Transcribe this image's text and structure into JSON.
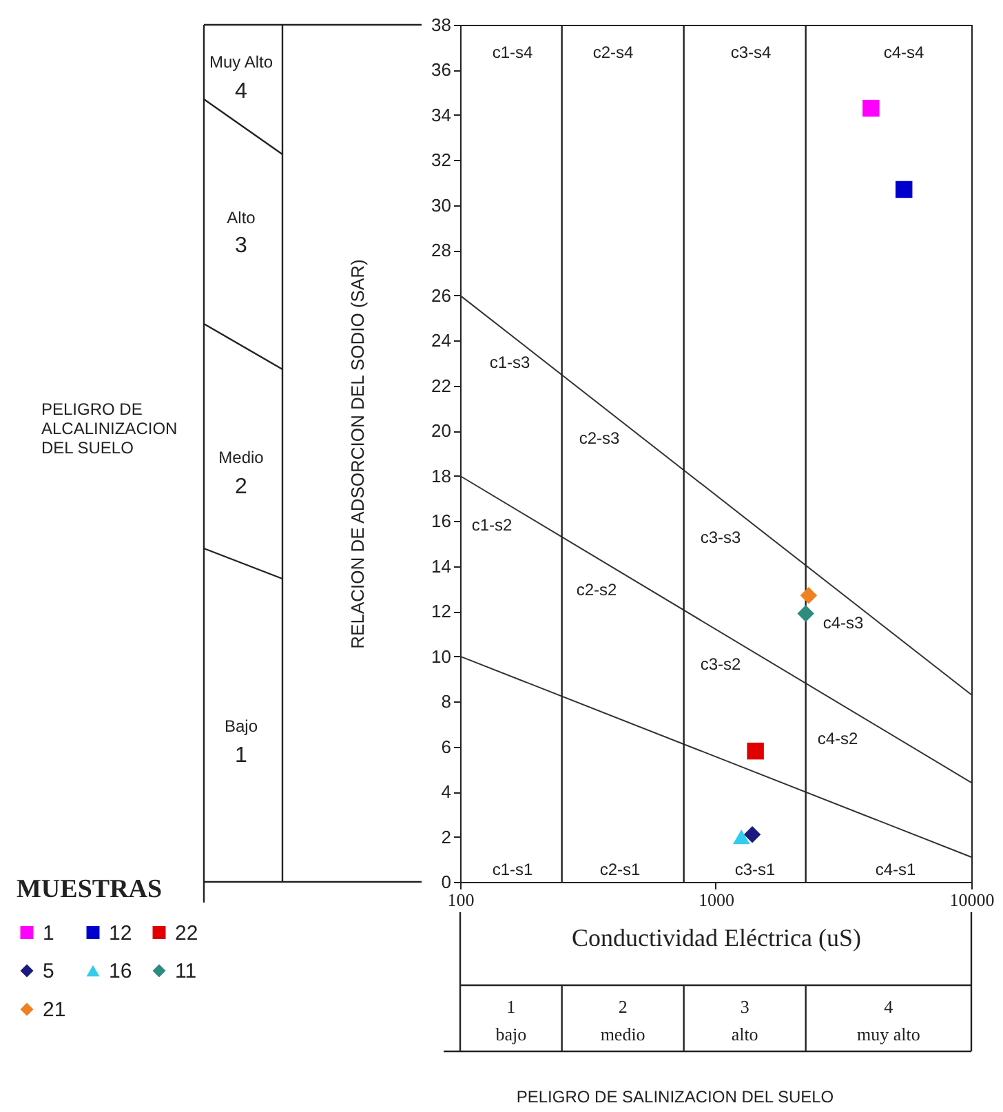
{
  "chart_data": {
    "type": "scatter",
    "ylabel": "RELACION DE ADSORCION DEL SODIO (SAR)",
    "xlabel": "Conductividad Eléctrica (uS)",
    "legend_title": "MUESTRAS",
    "legend": "bottom left",
    "log": "x",
    "grid": false,
    "xlim": [
      100,
      10000
    ],
    "xticks": [
      100,
      1000,
      10000
    ],
    "ylim": [
      0,
      38
    ],
    "yticks": [
      0,
      2,
      4,
      6,
      8,
      10,
      12,
      14,
      16,
      18,
      20,
      22,
      24,
      26,
      28,
      30,
      32,
      34,
      36,
      38
    ],
    "ref_lines": [
      {
        "axis": "x",
        "value": 250
      },
      {
        "axis": "x",
        "value": 750
      },
      {
        "axis": "x",
        "value": 2250
      }
    ],
    "series": [
      {
        "name": "1",
        "color": "#ff00ff",
        "marker": "square",
        "x": [
          4050
        ],
        "values": [
          34.3
        ]
      },
      {
        "name": "5",
        "color": "#1a1a80",
        "marker": "diamond",
        "x": [
          1390
        ],
        "values": [
          2.1
        ]
      },
      {
        "name": "11",
        "color": "#2e8b80",
        "marker": "diamond",
        "x": [
          2250
        ],
        "values": [
          11.9
        ]
      },
      {
        "name": "12",
        "color": "#0000cc",
        "marker": "square",
        "x": [
          5450
        ],
        "values": [
          30.7
        ]
      },
      {
        "name": "16",
        "color": "#33ccee",
        "marker": "triangle",
        "x": [
          1260
        ],
        "values": [
          2.0
        ]
      },
      {
        "name": "21",
        "color": "#f08020",
        "marker": "diamond",
        "x": [
          2310
        ],
        "values": [
          12.7
        ]
      },
      {
        "name": "22",
        "color": "#e00000",
        "marker": "square",
        "x": [
          1430
        ],
        "values": [
          5.8
        ]
      },
      {
        "type": "line",
        "color": "#333333",
        "x": [
          100,
          10000
        ],
        "values": [
          10,
          1.1
        ]
      },
      {
        "type": "line",
        "color": "#333333",
        "x": [
          100,
          10000
        ],
        "values": [
          18,
          4.4
        ]
      },
      {
        "type": "line",
        "color": "#333333",
        "x": [
          100,
          10000
        ],
        "values": [
          26,
          8.3
        ]
      }
    ],
    "annotations": [
      "PELIGRO DE ALCALINIZACION DEL SUELO",
      "Muy Alto",
      "4",
      "Alto",
      "3",
      "Medio",
      "2",
      "Bajo",
      "1",
      "1",
      "bajo",
      "2",
      "medio",
      "3",
      "alto",
      "4",
      "muy alto",
      "PELIGRO DE SALINIZACION DEL SUELO",
      "c1-s4",
      "c2-s4",
      "c3-s4",
      "c4-s4",
      "c1-s3",
      "c2-s3",
      "c1-s2",
      "c2-s2",
      "c3-s3",
      "c3-s2",
      "c4-s3",
      "c4-s2",
      "c1-s1",
      "c2-s1",
      "c3-s1",
      "c4-s1"
    ]
  }
}
